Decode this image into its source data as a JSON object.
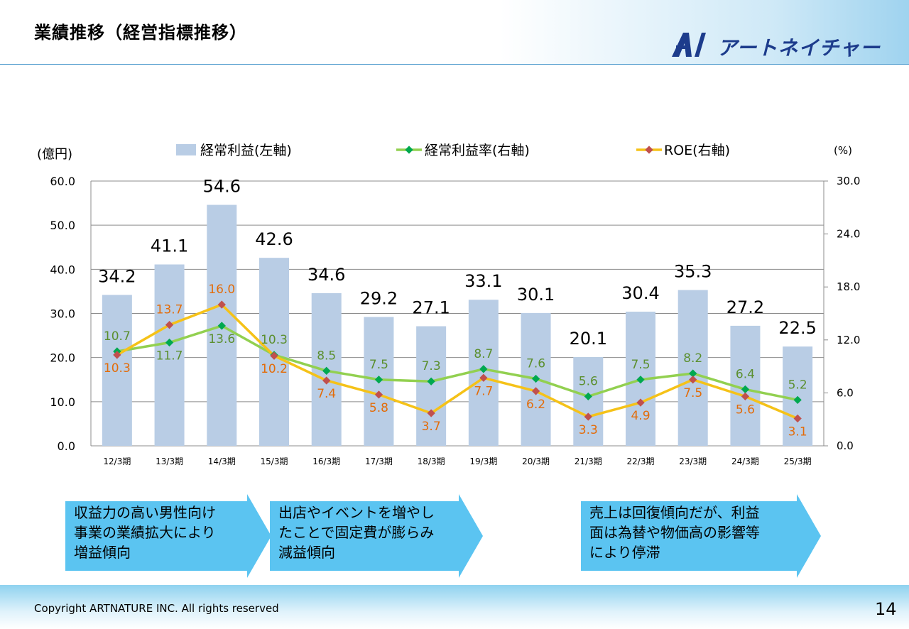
{
  "header": {
    "title": "業績推移（経営指標推移）",
    "logo_text": "アートネイチャー"
  },
  "chart_data": {
    "type": "bar",
    "categories": [
      "12/3期",
      "13/3期",
      "14/3期",
      "15/3期",
      "16/3期",
      "17/3期",
      "18/3期",
      "19/3期",
      "20/3期",
      "21/3期",
      "22/3期",
      "23/3期",
      "24/3期",
      "25/3期"
    ],
    "series": [
      {
        "name": "経常利益(左軸)",
        "type": "bar",
        "axis": "left",
        "color": "#b9cde5",
        "values": [
          34.2,
          41.1,
          54.6,
          42.6,
          34.6,
          29.2,
          27.1,
          33.1,
          30.1,
          20.1,
          30.4,
          35.3,
          27.2,
          22.5
        ],
        "labels": [
          "34.2",
          "41.1",
          "54.6",
          "42.6",
          "34.6",
          "29.2",
          "27.1",
          "33.1",
          "30.1",
          "20.1",
          "30.4",
          "35.3",
          "27.2",
          "22.5"
        ]
      },
      {
        "name": "経常利益率(右軸)",
        "type": "line",
        "axis": "right",
        "color": "#92d050",
        "marker_color": "#00a850",
        "label_color": "#5b8f2e",
        "values": [
          10.7,
          11.7,
          13.6,
          10.3,
          8.5,
          7.5,
          7.3,
          8.7,
          7.6,
          5.6,
          7.5,
          8.2,
          6.4,
          5.2
        ],
        "labels": [
          "10.7",
          "11.7",
          "13.6",
          "10.3",
          "8.5",
          "7.5",
          "7.3",
          "8.7",
          "7.6",
          "5.6",
          "7.5",
          "8.2",
          "6.4",
          "5.2"
        ]
      },
      {
        "name": "ROE(右軸)",
        "type": "line",
        "axis": "right",
        "color": "#f5c218",
        "marker_color": "#c0504d",
        "label_color": "#e36c09",
        "values": [
          10.3,
          13.7,
          16.0,
          10.2,
          7.4,
          5.8,
          3.7,
          7.7,
          6.2,
          3.3,
          4.9,
          7.5,
          5.6,
          3.1
        ],
        "labels": [
          "10.3",
          "13.7",
          "16.0",
          "10.2",
          "7.4",
          "5.8",
          "3.7",
          "7.7",
          "6.2",
          "3.3",
          "4.9",
          "7.5",
          "5.6",
          "3.1"
        ]
      }
    ],
    "y_left": {
      "label": "(億円)",
      "range": [
        0,
        60
      ],
      "ticks": [
        "0.0",
        "10.0",
        "20.0",
        "30.0",
        "40.0",
        "50.0",
        "60.0"
      ]
    },
    "y_right": {
      "label": "(%)",
      "range": [
        0,
        30
      ],
      "ticks": [
        "0.0",
        "6.0",
        "12.0",
        "18.0",
        "24.0",
        "30.0"
      ]
    },
    "grid": true,
    "legend_position": "top"
  },
  "callouts": [
    {
      "text": "収益力の高い男性向け\n事業の業績拡大により\n増益傾向"
    },
    {
      "text": "出店やイベントを増やし\nたことで固定費が膨らみ\n減益傾向"
    },
    {
      "text": "売上は回復傾向だが、利益\n面は為替や物価高の影響等\nにより停滞"
    }
  ],
  "footer": {
    "copyright": "Copyright ARTNATURE INC. All rights reserved",
    "page": "14"
  },
  "colors": {
    "callout_fill": "#5bc4f1",
    "brand": "#1d3c8c",
    "header_line": "#3a8fc7"
  }
}
